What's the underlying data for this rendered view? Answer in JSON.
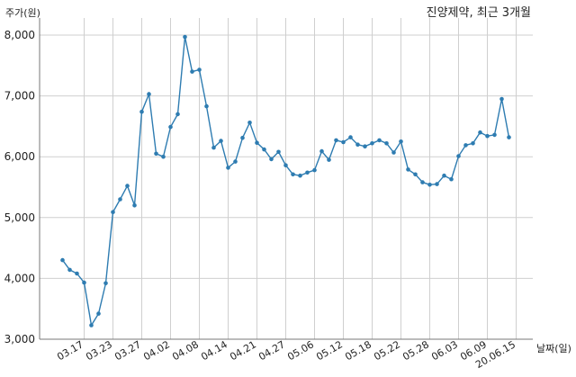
{
  "chart_data": {
    "type": "line",
    "title": "진양제약, 최근 3개월",
    "ylabel": "주가(원)",
    "xlabel": "날짜(일)",
    "ylim": [
      3000,
      8200
    ],
    "yticks": [
      3000,
      4000,
      5000,
      6000,
      7000,
      8000
    ],
    "ytick_labels": [
      "3,000",
      "4,000",
      "5,000",
      "6,000",
      "7,000",
      "8,000"
    ],
    "grid": true,
    "color": "#2e7cb1",
    "x_ticks": [
      {
        "index": 3,
        "label": "03.17"
      },
      {
        "index": 7,
        "label": "03.23"
      },
      {
        "index": 11,
        "label": "03.27"
      },
      {
        "index": 15,
        "label": "04.02"
      },
      {
        "index": 19,
        "label": "04.08"
      },
      {
        "index": 23,
        "label": "04.14"
      },
      {
        "index": 27,
        "label": "04.21"
      },
      {
        "index": 31,
        "label": "04.27"
      },
      {
        "index": 35,
        "label": "05.06"
      },
      {
        "index": 39,
        "label": "05.12"
      },
      {
        "index": 43,
        "label": "05.18"
      },
      {
        "index": 47,
        "label": "05.22"
      },
      {
        "index": 51,
        "label": "05.28"
      },
      {
        "index": 55,
        "label": "06.03"
      },
      {
        "index": 59,
        "label": "06.09"
      },
      {
        "index": 63,
        "label": "20.06.15"
      }
    ],
    "series": [
      {
        "values": [
          4300,
          4140,
          4080,
          3930,
          3230,
          3420,
          3920,
          5090,
          5300,
          5520,
          5200,
          6740,
          7030,
          6050,
          6000,
          6490,
          6700,
          7970,
          7400,
          7430,
          6830,
          6150,
          6260,
          5820,
          5920,
          6310,
          6560,
          6230,
          6120,
          5960,
          6080,
          5860,
          5710,
          5690,
          5740,
          5780,
          6090,
          5950,
          6270,
          6240,
          6320,
          6200,
          6170,
          6220,
          6270,
          6220,
          6070,
          6250,
          5790,
          5710,
          5580,
          5540,
          5550,
          5690,
          5630,
          6010,
          6190,
          6220,
          6400,
          6340,
          6360,
          6950,
          6320
        ]
      }
    ]
  }
}
